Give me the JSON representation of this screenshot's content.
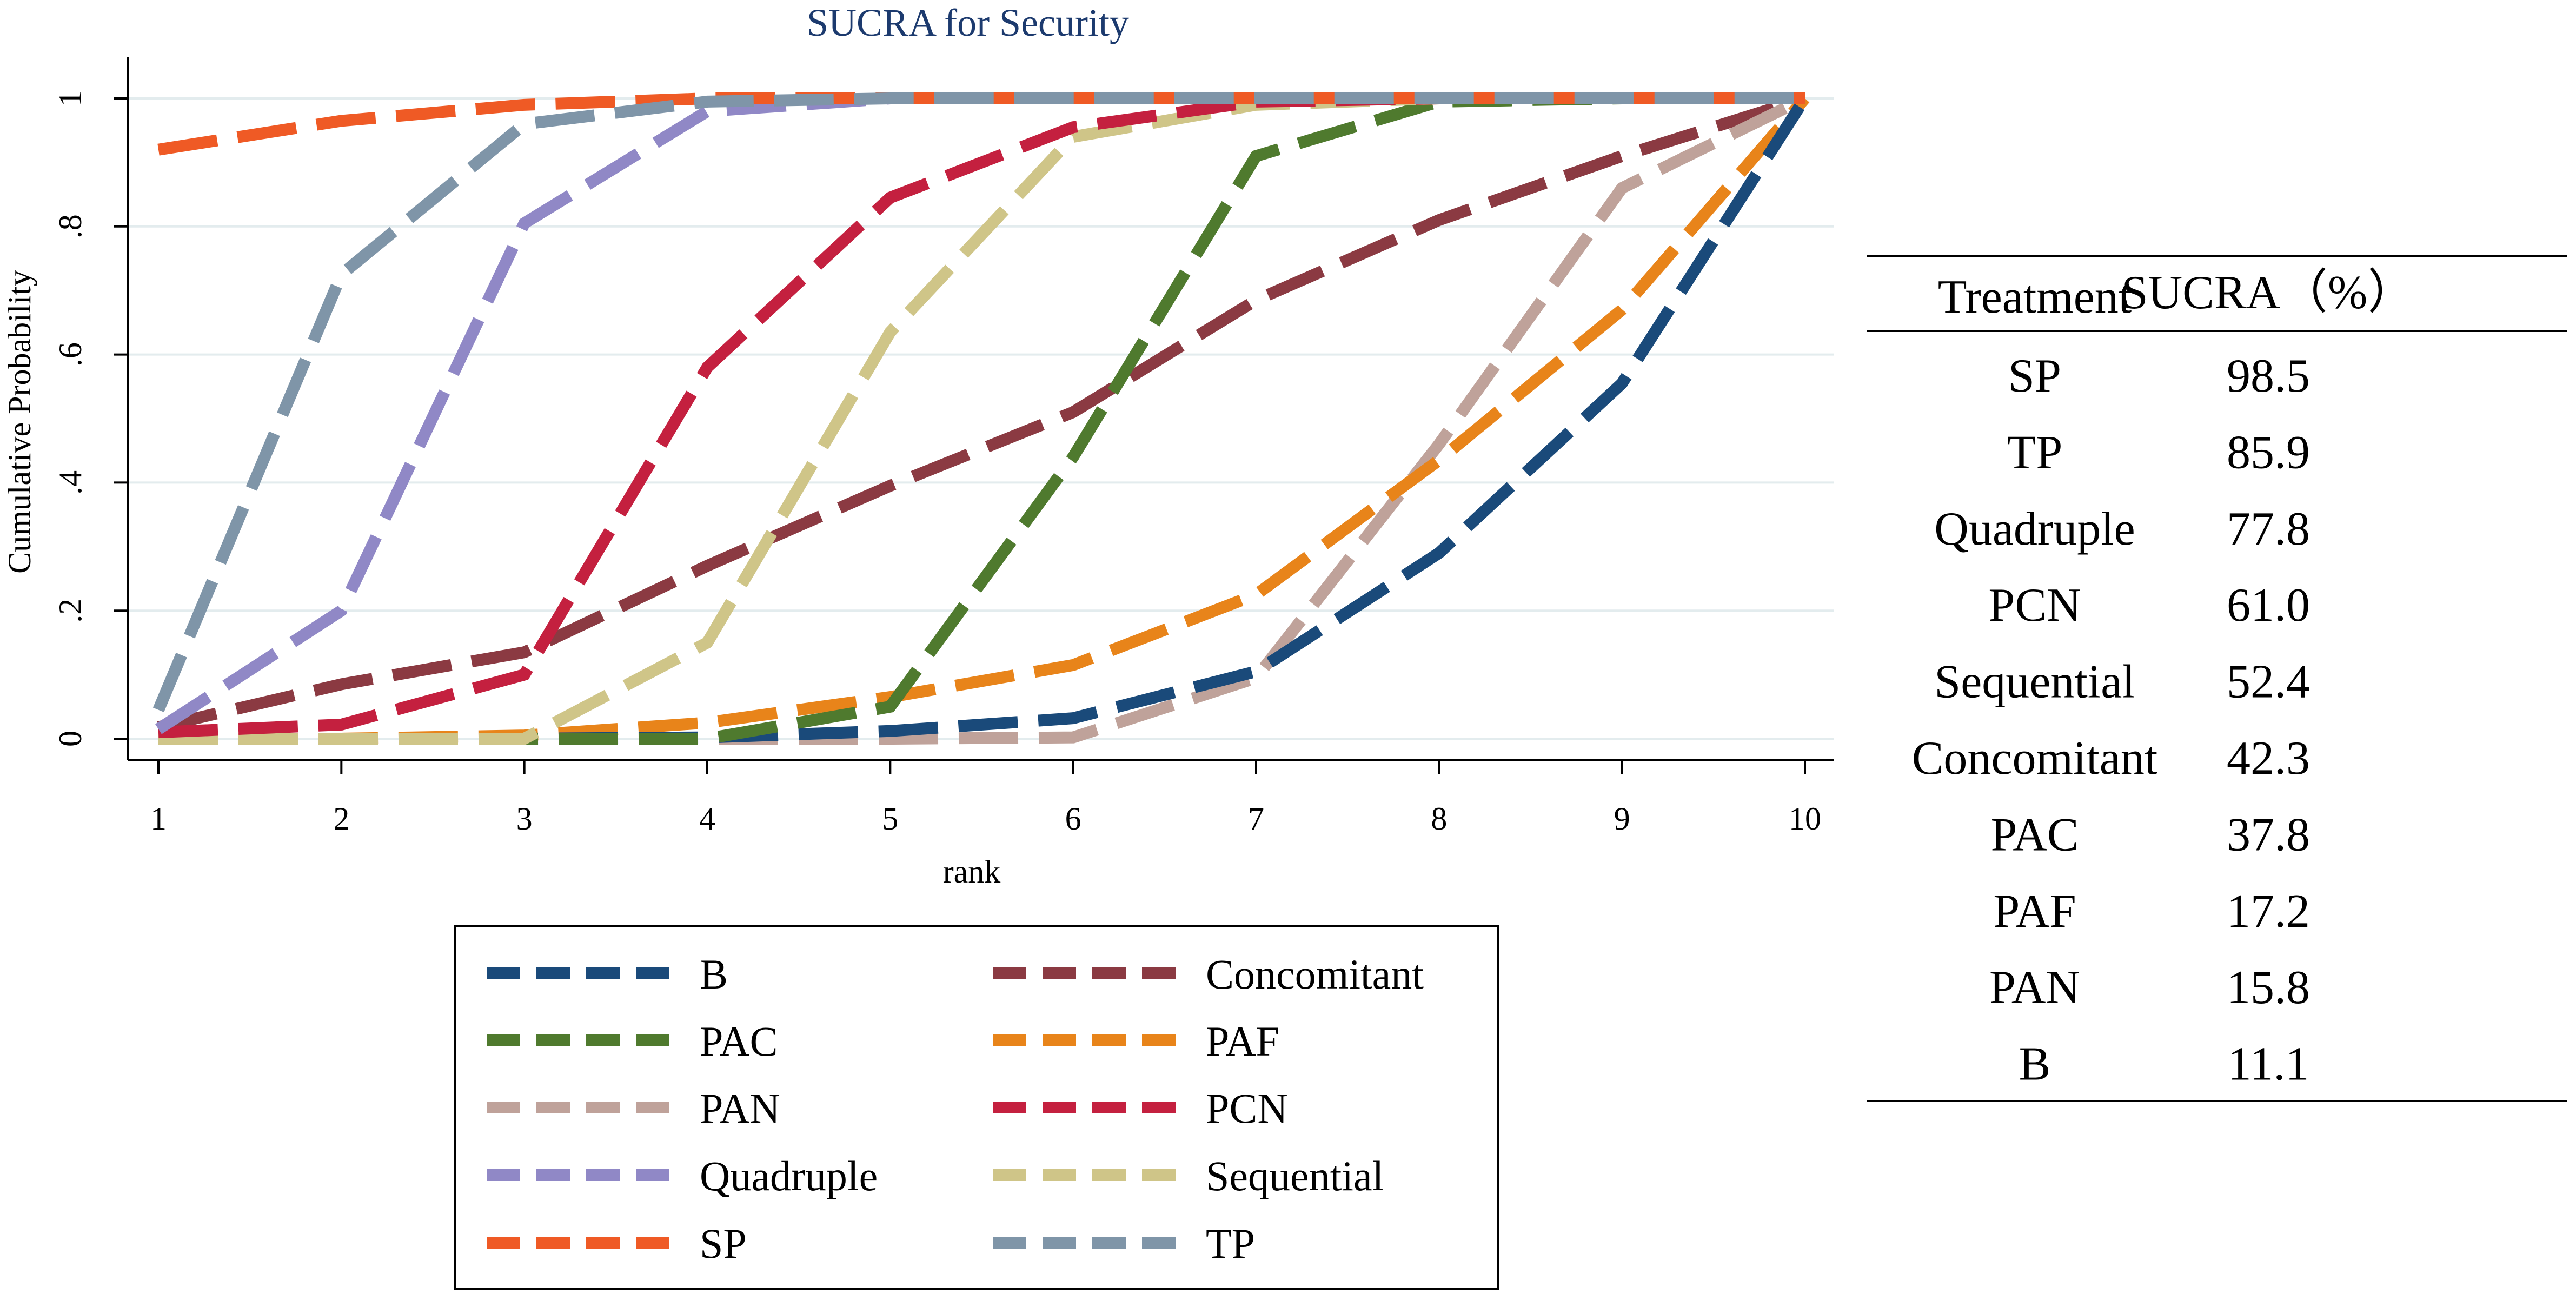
{
  "chart_data": {
    "type": "line",
    "title": "SUCRA for Security",
    "xlabel": "rank",
    "ylabel": "Cumulative Probability",
    "x": [
      1,
      2,
      3,
      4,
      5,
      6,
      7,
      8,
      9,
      10
    ],
    "xlim": [
      1,
      10
    ],
    "ylim": [
      0,
      1
    ],
    "x_ticks": [
      "1",
      "2",
      "3",
      "4",
      "5",
      "6",
      "7",
      "8",
      "9",
      "10"
    ],
    "y_ticks": [
      {
        "value": 0,
        "label": "0"
      },
      {
        "value": 0.2,
        "label": ".2"
      },
      {
        "value": 0.4,
        "label": ".4"
      },
      {
        "value": 0.6,
        "label": ".6"
      },
      {
        "value": 0.8,
        "label": ".8"
      },
      {
        "value": 1,
        "label": "1"
      }
    ],
    "grid": true,
    "line_style": "dashed",
    "legend_position": "bottom",
    "series": [
      {
        "name": "B",
        "color": "#1a4a7a",
        "values": [
          0,
          0,
          0,
          0.002,
          0.012,
          0.032,
          0.105,
          0.29,
          0.555,
          1
        ]
      },
      {
        "name": "Concomitant",
        "color": "#8b3a42",
        "values": [
          0.018,
          0.085,
          0.135,
          0.27,
          0.395,
          0.51,
          0.685,
          0.81,
          0.91,
          1
        ]
      },
      {
        "name": "PAC",
        "color": "#4f7a2e",
        "values": [
          0,
          0,
          0,
          0,
          0.05,
          0.44,
          0.91,
          0.995,
          1,
          1
        ]
      },
      {
        "name": "PAF",
        "color": "#e8841a",
        "values": [
          0,
          0,
          0.005,
          0.025,
          0.065,
          0.115,
          0.225,
          0.435,
          0.67,
          1
        ]
      },
      {
        "name": "PAN",
        "color": "#bfa29a",
        "values": [
          0,
          0,
          0,
          0,
          0,
          0.002,
          0.095,
          0.46,
          0.86,
          1
        ]
      },
      {
        "name": "PCN",
        "color": "#c4203f",
        "values": [
          0.01,
          0.022,
          0.1,
          0.58,
          0.845,
          0.955,
          0.995,
          1,
          1,
          1
        ]
      },
      {
        "name": "Quadruple",
        "color": "#9088c6",
        "values": [
          0.015,
          0.2,
          0.805,
          0.98,
          1,
          1,
          1,
          1,
          1,
          1
        ]
      },
      {
        "name": "Sequential",
        "color": "#cfc588",
        "values": [
          0,
          0,
          0,
          0.15,
          0.635,
          0.94,
          0.99,
          1,
          1,
          1
        ]
      },
      {
        "name": "SP",
        "color": "#ef5a25",
        "values": [
          0.92,
          0.965,
          0.99,
          1,
          1,
          1,
          1,
          1,
          1,
          1
        ]
      },
      {
        "name": "TP",
        "color": "#7f95a8",
        "values": [
          0.045,
          0.725,
          0.96,
          0.995,
          1,
          1,
          1,
          1,
          1,
          1
        ]
      }
    ]
  },
  "table": {
    "headers": [
      "Treatment",
      "SUCRA（%）"
    ],
    "rows": [
      [
        "SP",
        "98.5"
      ],
      [
        "TP",
        "85.9"
      ],
      [
        "Quadruple",
        "77.8"
      ],
      [
        "PCN",
        "61.0"
      ],
      [
        "Sequential",
        "52.4"
      ],
      [
        "Concomitant",
        "42.3"
      ],
      [
        "PAC",
        "37.8"
      ],
      [
        "PAF",
        "17.2"
      ],
      [
        "PAN",
        "15.8"
      ],
      [
        "B",
        "11.1"
      ]
    ]
  }
}
